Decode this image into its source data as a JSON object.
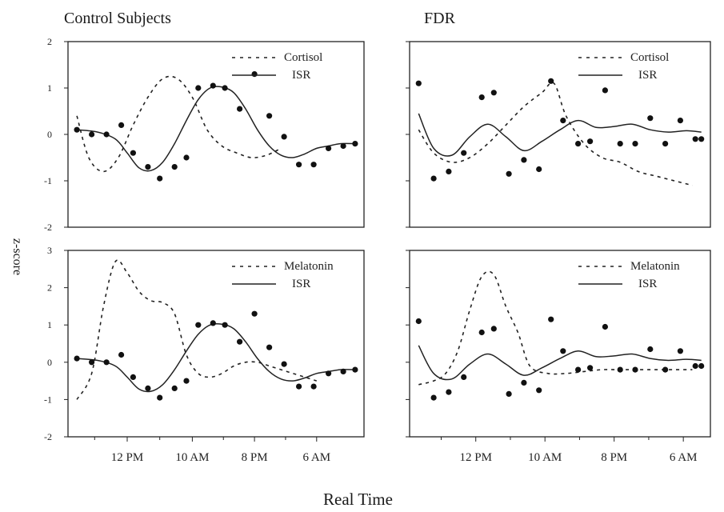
{
  "figure": {
    "titles": [
      "Control Subjects",
      "FDR"
    ],
    "ylabel": "z-score",
    "xlabel": "Real Time"
  },
  "chart_data": [
    {
      "type": "line",
      "panel": "top-left",
      "title": "Control Subjects",
      "xlim": [
        0,
        100
      ],
      "ylim": [
        -2,
        2
      ],
      "yticks": [
        -2,
        -1,
        0,
        1,
        2
      ],
      "legend": {
        "placement": "top-right",
        "entries": [
          "Cortisol",
          "ISR"
        ]
      },
      "series": [
        {
          "name": "Cortisol",
          "style": "dotted",
          "x": [
            3,
            7,
            12,
            17,
            22,
            27,
            32,
            37,
            42,
            47,
            52,
            57,
            62,
            67,
            72
          ],
          "y": [
            0.4,
            -0.5,
            -0.8,
            -0.5,
            0.2,
            0.8,
            1.2,
            1.2,
            0.8,
            0.1,
            -0.25,
            -0.4,
            -0.5,
            -0.45,
            -0.3
          ]
        },
        {
          "name": "ISR",
          "style": "solid",
          "x": [
            3,
            10,
            16,
            20,
            24,
            28,
            32,
            36,
            40,
            44,
            48,
            52,
            56,
            60,
            64,
            68,
            72,
            76,
            80,
            84,
            88,
            92,
            97
          ],
          "y": [
            0.1,
            0.05,
            -0.1,
            -0.4,
            -0.72,
            -0.78,
            -0.6,
            -0.2,
            0.3,
            0.75,
            1.0,
            1.02,
            0.9,
            0.55,
            0.1,
            -0.25,
            -0.45,
            -0.5,
            -0.42,
            -0.3,
            -0.25,
            -0.2,
            -0.2
          ]
        },
        {
          "name": "ISR samples",
          "style": "points",
          "x": [
            3,
            8,
            13,
            18,
            22,
            27,
            31,
            36,
            40,
            44,
            49,
            53,
            58,
            63,
            68,
            73,
            78,
            83,
            88,
            93,
            97
          ],
          "y": [
            0.1,
            0.0,
            0.0,
            0.2,
            -0.4,
            -0.7,
            -0.95,
            -0.7,
            -0.5,
            1.0,
            1.05,
            1.0,
            0.55,
            1.3,
            0.4,
            -0.05,
            -0.65,
            -0.65,
            -0.3,
            -0.25,
            -0.2
          ]
        }
      ]
    },
    {
      "type": "line",
      "panel": "top-right",
      "title": "FDR",
      "xlim": [
        0,
        100
      ],
      "ylim": [
        -2,
        2
      ],
      "yticks": [
        -2,
        -1,
        0,
        1,
        2
      ],
      "legend": {
        "placement": "top-right",
        "entries": [
          "Cortisol",
          "ISR"
        ]
      },
      "series": [
        {
          "name": "Cortisol",
          "style": "dotted",
          "x": [
            3,
            8,
            14,
            20,
            26,
            32,
            38,
            44,
            48,
            52,
            58,
            64,
            70,
            76,
            82,
            88,
            94
          ],
          "y": [
            0.1,
            -0.4,
            -0.6,
            -0.5,
            -0.2,
            0.2,
            0.6,
            0.9,
            1.1,
            0.4,
            -0.2,
            -0.5,
            -0.6,
            -0.8,
            -0.9,
            -1.0,
            -1.1
          ]
        },
        {
          "name": "ISR",
          "style": "solid",
          "x": [
            3,
            8,
            14,
            20,
            26,
            32,
            38,
            44,
            50,
            56,
            62,
            68,
            74,
            80,
            86,
            92,
            97
          ],
          "y": [
            0.45,
            -0.3,
            -0.45,
            -0.05,
            0.22,
            -0.05,
            -0.35,
            -0.15,
            0.1,
            0.3,
            0.15,
            0.17,
            0.22,
            0.1,
            0.05,
            0.08,
            0.05
          ]
        },
        {
          "name": "ISR samples",
          "style": "points",
          "x": [
            3,
            8,
            13,
            18,
            24,
            28,
            33,
            38,
            43,
            47,
            51,
            56,
            60,
            65,
            70,
            75,
            80,
            85,
            90,
            95,
            97
          ],
          "y": [
            1.1,
            -0.95,
            -0.8,
            -0.4,
            0.8,
            0.9,
            -0.85,
            -0.55,
            -0.75,
            1.15,
            0.3,
            -0.2,
            -0.15,
            0.95,
            -0.2,
            -0.2,
            0.35,
            -0.2,
            0.3,
            -0.1,
            -0.1
          ]
        }
      ]
    },
    {
      "type": "line",
      "panel": "bottom-left",
      "title": "",
      "xlim": [
        0,
        100
      ],
      "ylim": [
        -2,
        3
      ],
      "yticks": [
        -2,
        -1,
        0,
        1,
        2,
        3
      ],
      "xticks": [
        {
          "x": 20,
          "label": "12 PM"
        },
        {
          "x": 42,
          "label": "10 AM"
        },
        {
          "x": 63,
          "label": "8 PM"
        },
        {
          "x": 84,
          "label": "6 AM"
        }
      ],
      "legend": {
        "placement": "top-right",
        "entries": [
          "Melatonin",
          "ISR"
        ]
      },
      "series": [
        {
          "name": "Melatonin",
          "style": "dotted",
          "x": [
            3,
            8,
            12,
            16,
            20,
            24,
            28,
            32,
            36,
            40,
            44,
            48,
            52,
            56,
            60,
            64,
            68,
            72,
            76,
            80,
            84
          ],
          "y": [
            -1.0,
            -0.3,
            1.5,
            2.7,
            2.4,
            1.9,
            1.65,
            1.6,
            1.3,
            0.2,
            -0.3,
            -0.4,
            -0.3,
            -0.1,
            0.0,
            0.0,
            -0.1,
            -0.2,
            -0.3,
            -0.4,
            -0.5
          ]
        },
        {
          "name": "ISR",
          "style": "solid",
          "x": [
            3,
            10,
            16,
            20,
            24,
            28,
            32,
            36,
            40,
            44,
            48,
            52,
            56,
            60,
            64,
            68,
            72,
            76,
            80,
            84,
            88,
            92,
            97
          ],
          "y": [
            0.1,
            0.05,
            -0.1,
            -0.4,
            -0.72,
            -0.78,
            -0.6,
            -0.2,
            0.3,
            0.75,
            1.0,
            1.02,
            0.9,
            0.55,
            0.1,
            -0.25,
            -0.45,
            -0.5,
            -0.42,
            -0.3,
            -0.25,
            -0.2,
            -0.2
          ]
        },
        {
          "name": "ISR samples",
          "style": "points",
          "x": [
            3,
            8,
            13,
            18,
            22,
            27,
            31,
            36,
            40,
            44,
            49,
            53,
            58,
            63,
            68,
            73,
            78,
            83,
            88,
            93,
            97
          ],
          "y": [
            0.1,
            0.0,
            0.0,
            0.2,
            -0.4,
            -0.7,
            -0.95,
            -0.7,
            -0.5,
            1.0,
            1.05,
            1.0,
            0.55,
            1.3,
            0.4,
            -0.05,
            -0.65,
            -0.65,
            -0.3,
            -0.25,
            -0.2
          ]
        }
      ]
    },
    {
      "type": "line",
      "panel": "bottom-right",
      "title": "",
      "xlim": [
        0,
        100
      ],
      "ylim": [
        -2,
        3
      ],
      "yticks": [
        -2,
        -1,
        0,
        1,
        2,
        3
      ],
      "xticks": [
        {
          "x": 22,
          "label": "12 PM"
        },
        {
          "x": 45,
          "label": "10 AM"
        },
        {
          "x": 68,
          "label": "8 PM"
        },
        {
          "x": 91,
          "label": "6 AM"
        }
      ],
      "legend": {
        "placement": "top-right",
        "entries": [
          "Melatonin",
          "ISR"
        ]
      },
      "series": [
        {
          "name": "Melatonin",
          "style": "dotted",
          "x": [
            3,
            8,
            12,
            16,
            20,
            24,
            28,
            32,
            36,
            40,
            46,
            52,
            58,
            64,
            70,
            76,
            82,
            88,
            94
          ],
          "y": [
            -0.6,
            -0.5,
            -0.3,
            0.3,
            1.4,
            2.3,
            2.35,
            1.5,
            0.8,
            -0.1,
            -0.3,
            -0.3,
            -0.25,
            -0.2,
            -0.2,
            -0.2,
            -0.2,
            -0.2,
            -0.2
          ]
        },
        {
          "name": "ISR",
          "style": "solid",
          "x": [
            3,
            8,
            14,
            20,
            26,
            32,
            38,
            44,
            50,
            56,
            62,
            68,
            74,
            80,
            86,
            92,
            97
          ],
          "y": [
            0.45,
            -0.3,
            -0.45,
            -0.05,
            0.22,
            -0.05,
            -0.35,
            -0.15,
            0.1,
            0.3,
            0.15,
            0.17,
            0.22,
            0.1,
            0.05,
            0.08,
            0.05
          ]
        },
        {
          "name": "ISR samples",
          "style": "points",
          "x": [
            3,
            8,
            13,
            18,
            24,
            28,
            33,
            38,
            43,
            47,
            51,
            56,
            60,
            65,
            70,
            75,
            80,
            85,
            90,
            95,
            97
          ],
          "y": [
            1.1,
            -0.95,
            -0.8,
            -0.4,
            0.8,
            0.9,
            -0.85,
            -0.55,
            -0.75,
            1.15,
            0.3,
            -0.2,
            -0.15,
            0.95,
            -0.2,
            -0.2,
            0.35,
            -0.2,
            0.3,
            -0.1,
            -0.1
          ]
        }
      ]
    }
  ]
}
